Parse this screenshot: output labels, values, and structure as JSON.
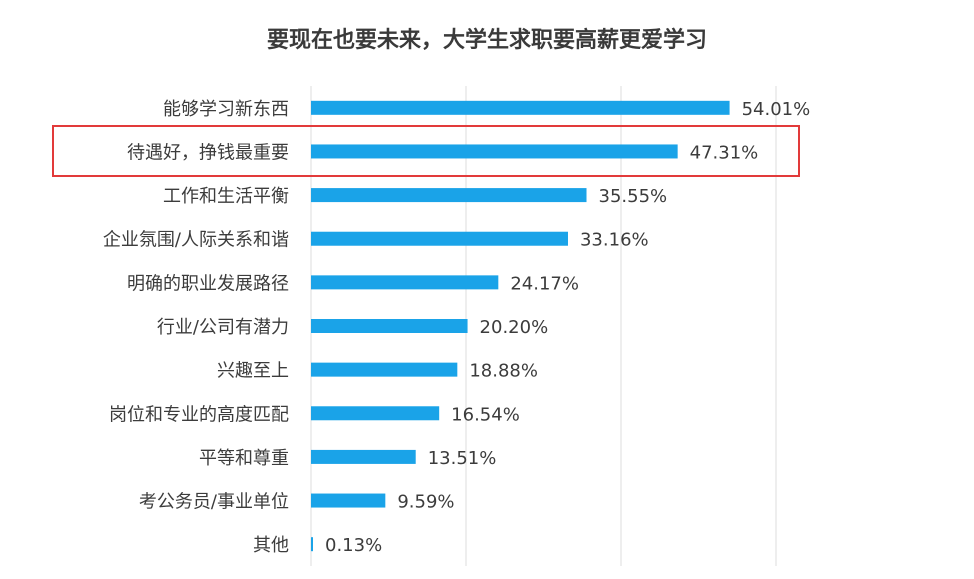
{
  "chart_data": {
    "type": "bar",
    "orientation": "horizontal",
    "title": "要现在也要未来，大学生求职要高薪更爱学习",
    "categories": [
      "能够学习新东西",
      "待遇好，挣钱最重要",
      "工作和生活平衡",
      "企业氛围/人际关系和谐",
      "明确的职业发展路径",
      "行业/公司有潜力",
      "兴趣至上",
      "岗位和专业的高度匹配",
      "平等和尊重",
      "考公务员/事业单位",
      "其他"
    ],
    "values": [
      54.01,
      47.31,
      35.55,
      33.16,
      24.17,
      20.2,
      18.88,
      16.54,
      13.51,
      9.59,
      0.13
    ],
    "value_labels": [
      "54.01%",
      "47.31%",
      "35.55%",
      "33.16%",
      "24.17%",
      "20.20%",
      "18.88%",
      "16.54%",
      "13.51%",
      "9.59%",
      "0.13%"
    ],
    "xlim": [
      0,
      60
    ],
    "grid": true,
    "highlighted_category": "待遇好，挣钱最重要",
    "colors": {
      "bar": "#1aa3e8",
      "grid": "#dcdcdc",
      "highlight": "#e23a3a"
    }
  }
}
